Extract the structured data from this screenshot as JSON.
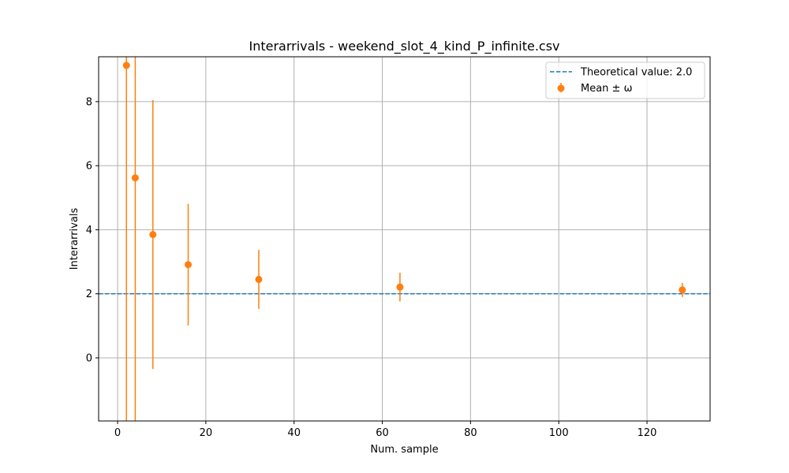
{
  "chart_data": {
    "type": "scatter",
    "title": "Interarrivals - weekend_slot_4_kind_P_infinite.csv",
    "xlabel": "Num. sample",
    "ylabel": "Interarrivals",
    "xlim": [
      -4.3,
      134.3
    ],
    "ylim": [
      -1.97,
      9.4
    ],
    "xticks": [
      0,
      20,
      40,
      60,
      80,
      100,
      120
    ],
    "yticks": [
      0,
      2,
      4,
      6,
      8
    ],
    "grid": true,
    "legend_position": "top-right",
    "reference_line": {
      "label": "Theoretical value: 2.0",
      "y": 2.0,
      "color": "#1f77b4",
      "style": "dashed"
    },
    "series": [
      {
        "name": "Mean ± ω",
        "color": "#ff7f0e",
        "points": [
          {
            "x": 2,
            "y": 9.13,
            "err": 12.5
          },
          {
            "x": 4,
            "y": 5.62,
            "err": 8.0
          },
          {
            "x": 8,
            "y": 3.85,
            "err": 4.2
          },
          {
            "x": 16,
            "y": 2.91,
            "err": 1.9
          },
          {
            "x": 32,
            "y": 2.45,
            "err": 0.92
          },
          {
            "x": 64,
            "y": 2.21,
            "err": 0.45
          },
          {
            "x": 128,
            "y": 2.12,
            "err": 0.22
          }
        ]
      }
    ]
  }
}
